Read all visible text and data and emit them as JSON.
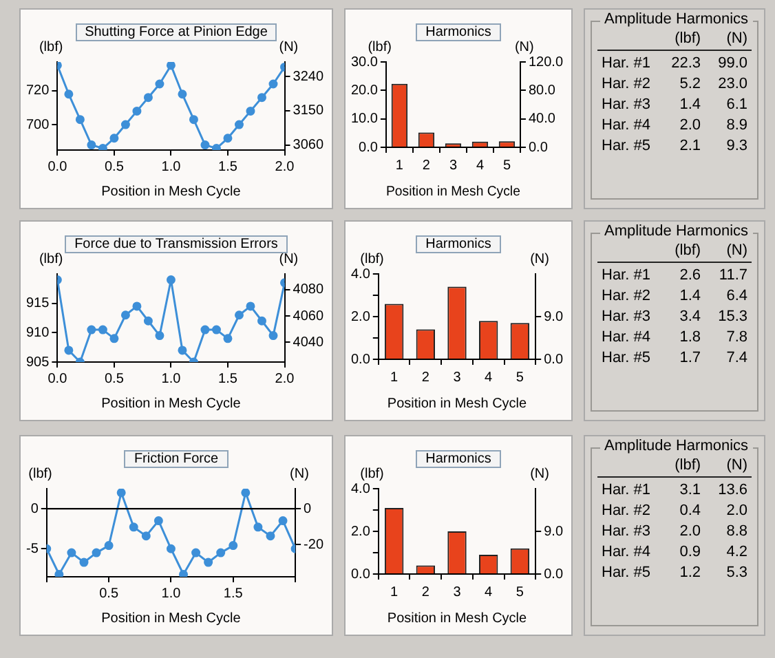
{
  "chart_data": [
    {
      "type": "line",
      "title": "Shutting Force at Pinion Edge",
      "xlabel": "Position in Mesh Cycle",
      "ylabel": "(lbf)",
      "y2label": "(N)",
      "x": [
        0,
        0.1,
        0.2,
        0.3,
        0.4,
        0.5,
        0.6,
        0.7,
        0.8,
        0.9,
        1,
        1.1,
        1.2,
        1.3,
        1.4,
        1.5,
        1.6,
        1.7,
        1.8,
        1.9,
        2
      ],
      "series": [
        {
          "color": "#3d8fd8",
          "values": [
            735,
            718,
            703,
            688,
            686,
            692,
            700,
            708,
            716,
            724,
            735,
            718,
            703,
            688,
            686,
            692,
            700,
            708,
            716,
            724,
            734
          ]
        }
      ],
      "xlim": [
        0,
        2
      ],
      "xticks": [
        {
          "value": 0,
          "label": "0.0"
        },
        {
          "value": 0.5,
          "label": "0.5"
        },
        {
          "value": 1,
          "label": "1.0"
        },
        {
          "value": 1.5,
          "label": "1.5"
        },
        {
          "value": 2,
          "label": "2.0"
        }
      ],
      "ylim": [
        685,
        737
      ],
      "yticks": [
        700,
        720
      ],
      "y2lim": [
        3047,
        3278
      ],
      "y2ticks": [
        3060,
        3150,
        3240
      ],
      "marker": "circle",
      "line_style": "solid",
      "legend": false,
      "grid": false
    },
    {
      "type": "bar",
      "title": "Harmonics",
      "xlabel": "Position in Mesh Cycle",
      "ylabel": "(lbf)",
      "y2label": "(N)",
      "categories": [
        "1",
        "2",
        "3",
        "4",
        "5"
      ],
      "series": [
        {
          "color": "#e8431c",
          "values": [
            22.3,
            5.2,
            1.4,
            2.0,
            2.1
          ]
        }
      ],
      "ylim": [
        0,
        30
      ],
      "yticks": [
        {
          "value": 0,
          "label": "0.0"
        },
        {
          "value": 10,
          "label": "10.0"
        },
        {
          "value": 20,
          "label": "20.0"
        },
        {
          "value": 30,
          "label": "30.0"
        }
      ],
      "y2lim": [
        0,
        120
      ],
      "y2ticks": [
        {
          "value": 0,
          "label": "0.0"
        },
        {
          "value": 40,
          "label": "40.0"
        },
        {
          "value": 80,
          "label": "80.0"
        },
        {
          "value": 120,
          "label": "120.0"
        }
      ],
      "legend": false,
      "grid": false,
      "annotations": [
        "Amplitude Harmonics",
        "(lbf)",
        "(N)",
        "Har. #1",
        "22.3",
        "99.0",
        "Har. #2",
        "5.2",
        "23.0",
        "Har. #3",
        "1.4",
        "6.1",
        "Har. #4",
        "2.0",
        "8.9",
        "Har. #5",
        "2.1",
        "9.3"
      ]
    },
    {
      "type": "line",
      "title": "Force due to Transmission Errors",
      "xlabel": "Position in Mesh Cycle",
      "ylabel": "(lbf)",
      "y2label": "(N)",
      "x": [
        0,
        0.1,
        0.2,
        0.3,
        0.4,
        0.5,
        0.6,
        0.7,
        0.8,
        0.9,
        1,
        1.1,
        1.2,
        1.3,
        1.4,
        1.5,
        1.6,
        1.7,
        1.8,
        1.9,
        2
      ],
      "series": [
        {
          "color": "#3d8fd8",
          "values": [
            919,
            907,
            905,
            910.5,
            910.5,
            909,
            913,
            914.5,
            912,
            909.5,
            919,
            907,
            905,
            910.5,
            910.5,
            909,
            913,
            914.5,
            912,
            909.5,
            918.5
          ]
        }
      ],
      "xlim": [
        0,
        2
      ],
      "xticks": [
        {
          "value": 0,
          "label": "0.0"
        },
        {
          "value": 0.5,
          "label": "0.5"
        },
        {
          "value": 1,
          "label": "1.0"
        },
        {
          "value": 1.5,
          "label": "1.5"
        },
        {
          "value": 2,
          "label": "2.0"
        }
      ],
      "ylim": [
        905,
        920
      ],
      "yticks": [
        905,
        910,
        915
      ],
      "y2lim": [
        4025,
        4092
      ],
      "y2ticks": [
        4040,
        4060,
        4080
      ],
      "marker": "circle",
      "line_style": "solid",
      "legend": false,
      "grid": false
    },
    {
      "type": "bar",
      "title": "Harmonics",
      "xlabel": "Position in Mesh Cycle",
      "ylabel": "(lbf)",
      "y2label": "(N)",
      "categories": [
        "1",
        "2",
        "3",
        "4",
        "5"
      ],
      "series": [
        {
          "color": "#e8431c",
          "values": [
            2.6,
            1.4,
            3.4,
            1.8,
            1.7
          ]
        }
      ],
      "ylim": [
        0,
        4
      ],
      "yticks": [
        {
          "value": 0,
          "label": "0.0"
        },
        {
          "value": 1,
          "label": null
        },
        {
          "value": 2,
          "label": "2.0"
        },
        {
          "value": 3,
          "label": null
        },
        {
          "value": 4,
          "label": "4.0"
        }
      ],
      "y2lim": [
        0,
        18
      ],
      "y2ticks": [
        {
          "value": 0,
          "label": "0.0"
        },
        {
          "value": 9,
          "label": "9.0"
        }
      ],
      "legend": false,
      "grid": false,
      "annotations": [
        "Amplitude Harmonics",
        "(lbf)",
        "(N)",
        "Har. #1",
        "2.6",
        "11.7",
        "Har. #2",
        "1.4",
        "6.4",
        "Har. #3",
        "3.4",
        "15.3",
        "Har. #4",
        "1.8",
        "7.8",
        "Har. #5",
        "1.7",
        "7.4"
      ]
    },
    {
      "type": "line",
      "title": "Friction Force",
      "xlabel": "Position in Mesh Cycle",
      "ylabel": "(lbf)",
      "y2label": "(N)",
      "x": [
        0,
        0.1,
        0.2,
        0.3,
        0.4,
        0.5,
        0.6,
        0.7,
        0.8,
        0.9,
        1,
        1.1,
        1.2,
        1.3,
        1.4,
        1.5,
        1.6,
        1.7,
        1.8,
        1.9,
        2
      ],
      "series": [
        {
          "color": "#3d8fd8",
          "values": [
            -5,
            -8.2,
            -5.5,
            -6.7,
            -5.5,
            -4.6,
            2,
            -2.3,
            -3.4,
            -1.5,
            -5,
            -8.2,
            -5.5,
            -6.7,
            -5.5,
            -4.6,
            2,
            -2.3,
            -3.4,
            -1.5,
            -5
          ]
        }
      ],
      "xlim": [
        0,
        2
      ],
      "xticks": [
        {
          "value": 0,
          "label": null
        },
        {
          "value": 0.5,
          "label": "0.5"
        },
        {
          "value": 1,
          "label": "1.0"
        },
        {
          "value": 1.5,
          "label": "1.5"
        },
        {
          "value": 2,
          "label": null
        }
      ],
      "ylim": [
        -8.5,
        2.5
      ],
      "yticks": [
        -5,
        0
      ],
      "y2lim": [
        -37.8,
        11.1
      ],
      "y2ticks": [
        -20,
        0
      ],
      "ref_lines": [
        {
          "axis": "y",
          "value": 0,
          "color": "#000000"
        }
      ],
      "marker": "circle",
      "line_style": "solid",
      "legend": false,
      "grid": false
    },
    {
      "type": "bar",
      "title": "Harmonics",
      "xlabel": "Position in Mesh Cycle",
      "ylabel": "(lbf)",
      "y2label": "(N)",
      "categories": [
        "1",
        "2",
        "3",
        "4",
        "5"
      ],
      "series": [
        {
          "color": "#e8431c",
          "values": [
            3.1,
            0.4,
            2.0,
            0.9,
            1.2
          ]
        }
      ],
      "ylim": [
        0,
        4
      ],
      "yticks": [
        {
          "value": 0,
          "label": "0.0"
        },
        {
          "value": 1,
          "label": null
        },
        {
          "value": 2,
          "label": "2.0"
        },
        {
          "value": 3,
          "label": null
        },
        {
          "value": 4,
          "label": "4.0"
        }
      ],
      "y2lim": [
        0,
        18
      ],
      "y2ticks": [
        {
          "value": 0,
          "label": "0.0"
        },
        {
          "value": 9,
          "label": "9.0"
        }
      ],
      "legend": false,
      "grid": false,
      "annotations": [
        "Amplitude Harmonics",
        "(lbf)",
        "(N)",
        "Har. #1",
        "3.1",
        "13.6",
        "Har. #2",
        "0.4",
        "2.0",
        "Har. #3",
        "2.0",
        "8.8",
        "Har. #4",
        "0.9",
        "4.2",
        "Har. #5",
        "1.2",
        "5.3"
      ]
    }
  ]
}
